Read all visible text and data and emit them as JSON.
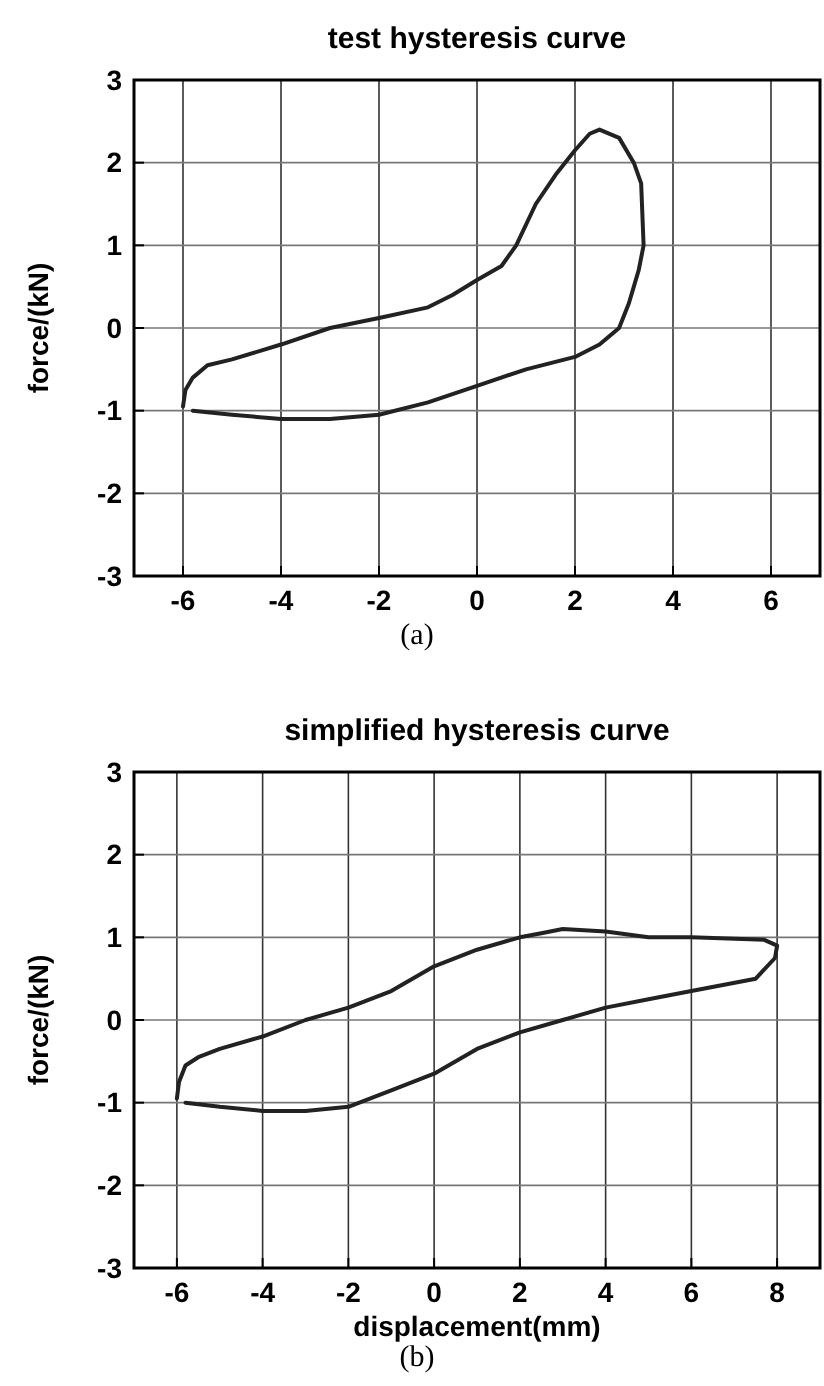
{
  "chart_data": [
    {
      "type": "line",
      "title": "test hysteresis curve",
      "ylabel": "force/(kN)",
      "annotations": [
        "(a)"
      ],
      "xlim": [
        -7,
        7
      ],
      "ylim": [
        -3,
        3
      ],
      "xticks": [
        -6,
        -4,
        -2,
        0,
        2,
        4,
        6
      ],
      "yticks": [
        -3,
        -2,
        -1,
        0,
        1,
        2,
        3
      ],
      "grid": true,
      "marker": "none",
      "line_style": "solid",
      "series": [
        {
          "color": "#222222",
          "x": [
            -6,
            -5.95,
            -5.8,
            -5.5,
            -5,
            -4,
            -3,
            -2,
            -1,
            -0.5,
            0,
            0.5,
            0.8,
            1.2,
            1.6,
            2,
            2.3,
            2.5,
            2.9,
            3.2,
            3.35,
            3.4,
            3.3,
            3.1,
            2.9,
            2.5,
            2,
            1,
            0,
            -1,
            -2,
            -3,
            -4,
            -5,
            -5.8
          ],
          "values": [
            -0.95,
            -0.75,
            -0.6,
            -0.45,
            -0.38,
            -0.2,
            0,
            0.12,
            0.25,
            0.4,
            0.58,
            0.75,
            1,
            1.5,
            1.85,
            2.15,
            2.35,
            2.4,
            2.3,
            2,
            1.75,
            1,
            0.7,
            0.3,
            0,
            -0.2,
            -0.35,
            -0.5,
            -0.7,
            -0.9,
            -1.05,
            -1.1,
            -1.1,
            -1.05,
            -1
          ]
        }
      ]
    },
    {
      "type": "line",
      "title": "simplified hysteresis curve",
      "xlabel": "displacement(mm)",
      "ylabel": "force/(kN)",
      "annotations": [
        "(b)"
      ],
      "xlim": [
        -7,
        9
      ],
      "ylim": [
        -3,
        3
      ],
      "xticks": [
        -6,
        -4,
        -2,
        0,
        2,
        4,
        6,
        8
      ],
      "yticks": [
        -3,
        -2,
        -1,
        0,
        1,
        2,
        3
      ],
      "grid": true,
      "marker": "none",
      "line_style": "solid",
      "series": [
        {
          "color": "#222222",
          "x": [
            -6,
            -5.95,
            -5.8,
            -5.5,
            -5,
            -4,
            -3,
            -2,
            -1,
            0,
            1,
            2,
            2.5,
            3,
            4,
            5,
            6,
            7.7,
            8,
            7.95,
            7.5,
            6,
            5,
            4,
            3,
            2,
            1,
            0,
            -1,
            -2,
            -3,
            -4,
            -5,
            -5.8
          ],
          "values": [
            -0.95,
            -0.75,
            -0.55,
            -0.45,
            -0.35,
            -0.2,
            0,
            0.15,
            0.35,
            0.65,
            0.85,
            1,
            1.05,
            1.1,
            1.07,
            1,
            1,
            0.97,
            0.9,
            0.75,
            0.5,
            0.35,
            0.25,
            0.15,
            0,
            -0.15,
            -0.35,
            -0.65,
            -0.85,
            -1.05,
            -1.1,
            -1.1,
            -1.05,
            -1
          ]
        }
      ]
    }
  ]
}
